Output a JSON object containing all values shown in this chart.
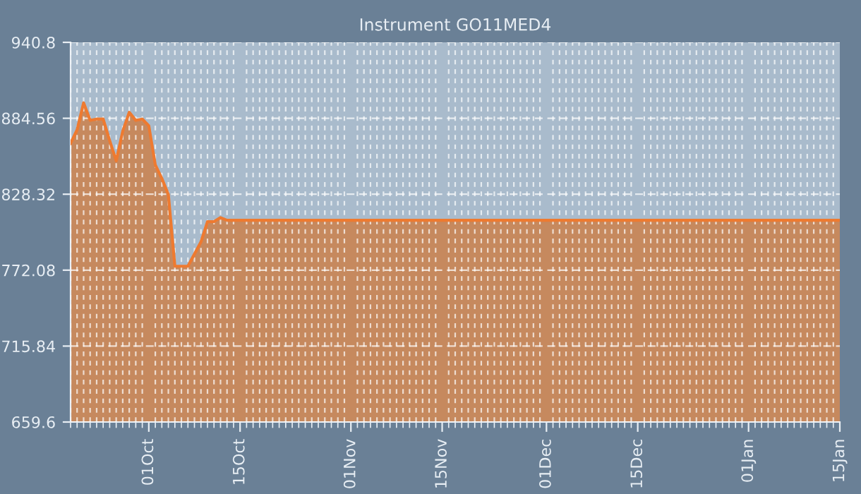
{
  "chart_data": {
    "type": "area",
    "title": "Instrument GO11MED4",
    "categories": [
      null,
      null,
      null,
      null,
      null,
      null,
      null,
      null,
      null,
      null,
      null,
      null,
      "01Oct",
      null,
      null,
      null,
      null,
      null,
      null,
      null,
      null,
      null,
      null,
      null,
      null,
      null,
      "15Oct",
      null,
      null,
      null,
      null,
      null,
      null,
      null,
      null,
      null,
      null,
      null,
      null,
      null,
      null,
      null,
      null,
      "01Nov",
      null,
      null,
      null,
      null,
      null,
      null,
      null,
      null,
      null,
      null,
      null,
      null,
      null,
      "15Nov",
      null,
      null,
      null,
      null,
      null,
      null,
      null,
      null,
      null,
      null,
      null,
      null,
      null,
      null,
      null,
      "01Dec",
      null,
      null,
      null,
      null,
      null,
      null,
      null,
      null,
      null,
      null,
      null,
      null,
      null,
      "15Dec",
      null,
      null,
      null,
      null,
      null,
      null,
      null,
      null,
      null,
      null,
      null,
      null,
      null,
      null,
      null,
      null,
      "01Jan",
      null,
      null,
      null,
      null,
      null,
      null,
      null,
      null,
      null,
      null,
      null,
      null,
      null,
      "15Jan"
    ],
    "series": [
      {
        "color": "#c98455",
        "values": [
          866,
          876,
          896,
          883,
          884,
          884,
          868,
          853,
          875,
          889,
          883,
          884,
          879,
          850,
          840,
          828,
          775,
          775,
          775,
          784,
          793,
          808,
          808,
          811,
          809,
          809,
          809,
          809,
          809,
          809,
          809,
          809,
          809,
          809,
          809,
          809,
          809,
          809,
          809,
          809,
          809,
          809,
          809,
          809,
          809,
          809,
          809,
          809,
          809,
          809,
          809,
          809,
          809,
          809,
          809,
          809,
          809,
          809,
          809,
          809,
          809,
          809,
          809,
          809,
          809,
          809,
          809,
          809,
          809,
          809,
          809,
          809,
          809,
          809,
          809,
          809,
          809,
          809,
          809,
          809,
          809,
          809,
          809,
          809,
          809,
          809,
          809,
          809,
          809,
          809,
          809,
          809,
          809,
          809,
          809,
          809,
          809,
          809,
          809,
          809,
          809,
          809,
          809,
          809,
          809,
          809,
          809,
          809,
          809,
          809,
          809,
          809,
          809,
          809,
          809,
          809,
          809,
          809,
          809
        ]
      }
    ],
    "ylim": [
      659.6,
      940.8
    ],
    "yticks": [
      659.6,
      715.84,
      772.08,
      828.32,
      884.56,
      940.8
    ],
    "grid": true
  }
}
